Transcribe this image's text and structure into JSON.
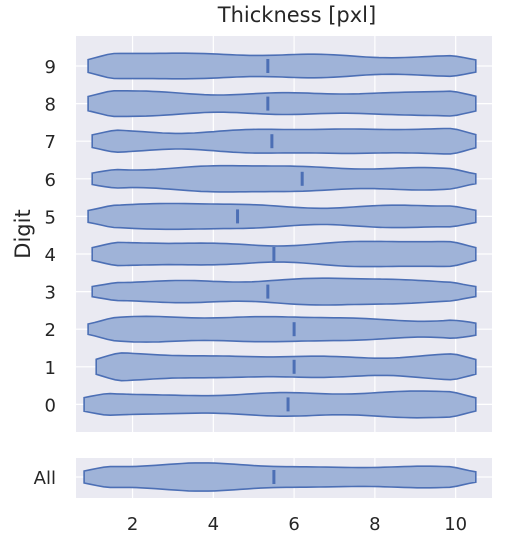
{
  "chart_data": [
    {
      "type": "violin",
      "title": "Thickness [pxl]",
      "ylabel": "Digit",
      "categories": [
        "9",
        "8",
        "7",
        "6",
        "5",
        "4",
        "3",
        "2",
        "1",
        "0"
      ],
      "xlim": [
        0.6,
        10.9
      ],
      "xticks": [
        2,
        4,
        6,
        8,
        10
      ],
      "grid": true,
      "series": [
        {
          "category": "9",
          "min": 0.9,
          "max": 10.5,
          "median": 5.35
        },
        {
          "category": "8",
          "min": 0.9,
          "max": 10.5,
          "median": 5.35
        },
        {
          "category": "7",
          "min": 1.0,
          "max": 10.5,
          "median": 5.45
        },
        {
          "category": "6",
          "min": 1.0,
          "max": 10.5,
          "median": 6.2
        },
        {
          "category": "5",
          "min": 0.9,
          "max": 10.5,
          "median": 4.6
        },
        {
          "category": "4",
          "min": 1.0,
          "max": 10.5,
          "median": 5.5
        },
        {
          "category": "3",
          "min": 1.0,
          "max": 10.5,
          "median": 5.35
        },
        {
          "category": "2",
          "min": 0.9,
          "max": 10.5,
          "median": 6.0
        },
        {
          "category": "1",
          "min": 1.1,
          "max": 10.5,
          "median": 6.0
        },
        {
          "category": "0",
          "min": 0.8,
          "max": 10.5,
          "median": 5.85
        }
      ]
    },
    {
      "type": "violin",
      "categories": [
        "All"
      ],
      "xlim": [
        0.6,
        10.9
      ],
      "xticks": [
        2,
        4,
        6,
        8,
        10
      ],
      "series": [
        {
          "category": "All",
          "min": 0.8,
          "max": 10.5,
          "median": 5.5
        }
      ]
    }
  ]
}
